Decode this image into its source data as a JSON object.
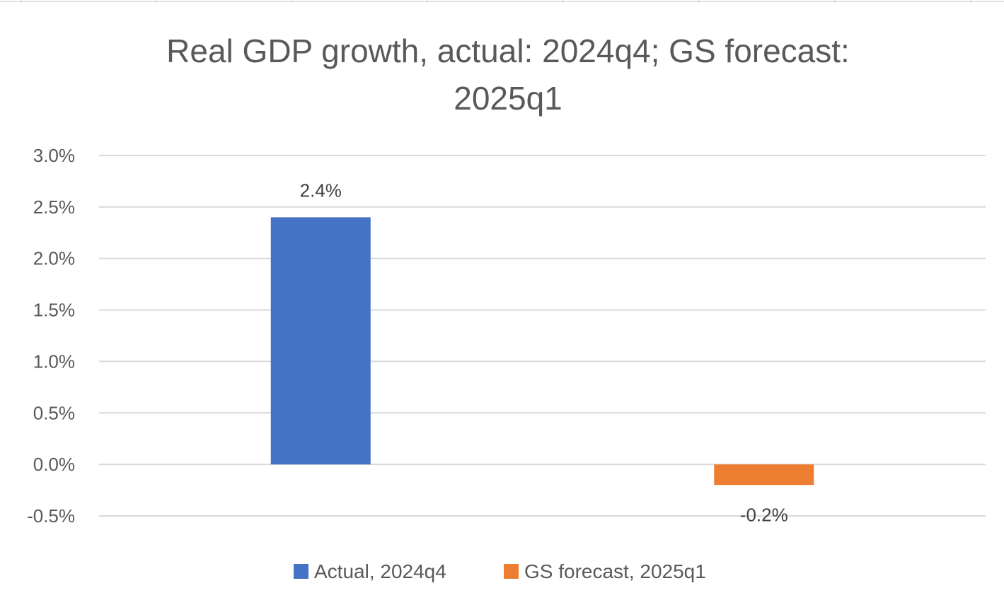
{
  "chart_data": {
    "type": "bar",
    "title_lines": [
      "Real GDP growth, actual: 2024q4; GS forecast:",
      "2025q1"
    ],
    "categories": [
      "Actual, 2024q4",
      "GS forecast, 2025q1"
    ],
    "series": [
      {
        "name": "Actual, 2024q4",
        "values": [
          2.4,
          null
        ],
        "color": "#4472C4",
        "data_label": "2.4%"
      },
      {
        "name": "GS forecast, 2025q1",
        "values": [
          null,
          -0.2
        ],
        "color": "#ED7D31",
        "data_label": "-0.2%"
      }
    ],
    "ylim": [
      -0.5,
      3.0
    ],
    "yticks": [
      {
        "value": 3.0,
        "label": "3.0%"
      },
      {
        "value": 2.5,
        "label": "2.5%"
      },
      {
        "value": 2.0,
        "label": "2.0%"
      },
      {
        "value": 1.5,
        "label": "1.5%"
      },
      {
        "value": 1.0,
        "label": "1.0%"
      },
      {
        "value": 0.5,
        "label": "0.5%"
      },
      {
        "value": 0.0,
        "label": "0.0%"
      },
      {
        "value": -0.5,
        "label": "-0.5%"
      }
    ],
    "grid": true,
    "legend_position": "bottom",
    "gridline_color": "#D9D9D9"
  }
}
